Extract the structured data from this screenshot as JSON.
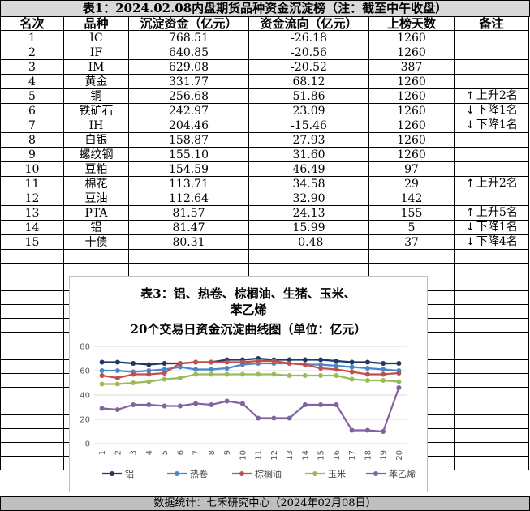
{
  "table": {
    "title": "表1：2024.02.08内盘期货品种资金沉淀榜（注：截至中午收盘）",
    "headers": [
      "名次",
      "品种",
      "沉淀资金（亿元）",
      "资金流向（亿元）",
      "上榜天数",
      "备注"
    ],
    "rows": [
      {
        "rank": "1",
        "name": "IC",
        "amount": "768.51",
        "flow": "-26.18",
        "days": "1260",
        "note_arrow": "",
        "note": ""
      },
      {
        "rank": "2",
        "name": "IF",
        "amount": "640.85",
        "flow": "-20.56",
        "days": "1260",
        "note_arrow": "",
        "note": ""
      },
      {
        "rank": "3",
        "name": "IM",
        "amount": "629.08",
        "flow": "-20.52",
        "days": "387",
        "note_arrow": "",
        "note": ""
      },
      {
        "rank": "4",
        "name": "黄金",
        "amount": "331.77",
        "flow": "68.12",
        "days": "1260",
        "note_arrow": "",
        "note": ""
      },
      {
        "rank": "5",
        "name": "铜",
        "amount": "256.68",
        "flow": "51.86",
        "days": "1260",
        "note_arrow": "↑",
        "note": "上升2名"
      },
      {
        "rank": "6",
        "name": "铁矿石",
        "amount": "242.97",
        "flow": "23.09",
        "days": "1260",
        "note_arrow": "↓",
        "note": "下降1名"
      },
      {
        "rank": "7",
        "name": "IH",
        "amount": "204.46",
        "flow": "-15.46",
        "days": "1260",
        "note_arrow": "↓",
        "note": "下降1名"
      },
      {
        "rank": "8",
        "name": "白银",
        "amount": "158.87",
        "flow": "27.93",
        "days": "1260",
        "note_arrow": "",
        "note": ""
      },
      {
        "rank": "9",
        "name": "螺纹钢",
        "amount": "155.10",
        "flow": "31.60",
        "days": "1260",
        "note_arrow": "",
        "note": ""
      },
      {
        "rank": "10",
        "name": "豆粕",
        "amount": "154.59",
        "flow": "46.49",
        "days": "97",
        "note_arrow": "",
        "note": ""
      },
      {
        "rank": "11",
        "name": "棉花",
        "amount": "113.71",
        "flow": "34.58",
        "days": "29",
        "note_arrow": "↑",
        "note": "上升2名"
      },
      {
        "rank": "12",
        "name": "豆油",
        "amount": "112.64",
        "flow": "32.90",
        "days": "142",
        "note_arrow": "",
        "note": ""
      },
      {
        "rank": "13",
        "name": "PTA",
        "amount": "81.57",
        "flow": "24.13",
        "days": "155",
        "note_arrow": "↑",
        "note": "上升5名"
      },
      {
        "rank": "14",
        "name": "铝",
        "amount": "81.47",
        "flow": "15.99",
        "days": "5",
        "note_arrow": "↓",
        "note": "下降1名"
      },
      {
        "rank": "15",
        "name": "十债",
        "amount": "80.31",
        "flow": "-0.48",
        "days": "37",
        "note_arrow": "↓",
        "note": "下降4名"
      }
    ]
  },
  "footer": "数据统计：七禾研究中心（2024年02月08日）",
  "chart_data": {
    "type": "line",
    "title": "表3：铝、热卷、棕榈油、生猪、玉米、苯乙烯",
    "subtitle": "20个交易日资金沉淀曲线图（单位：亿元）",
    "title_lines": [
      "表3：铝、热卷、棕榈油、生猪、玉米、",
      "苯乙烯",
      "20个交易日资金沉淀曲线图（单位：亿元）"
    ],
    "x": [
      "1",
      "2",
      "3",
      "4",
      "5",
      "6",
      "7",
      "8",
      "9",
      "10",
      "11",
      "12",
      "13",
      "14",
      "15",
      "16",
      "17",
      "18",
      "19",
      "20"
    ],
    "ylim": [
      0,
      80
    ],
    "yticks": [
      "0",
      "20",
      "40",
      "60",
      "80"
    ],
    "grid": true,
    "legend_position": "bottom",
    "series": [
      {
        "name": "铝",
        "color": "#1f3864",
        "values": [
          67,
          67,
          66,
          65,
          66,
          66,
          67,
          67,
          69,
          69,
          70,
          69,
          69,
          69,
          69,
          68,
          67,
          67,
          66,
          66
        ]
      },
      {
        "name": "热卷",
        "color": "#4a86c8",
        "values": [
          60,
          60,
          59,
          60,
          61,
          63,
          61,
          61,
          62,
          65,
          66,
          66,
          66,
          65,
          65,
          64,
          63,
          62,
          61,
          60
        ]
      },
      {
        "name": "棕榈油",
        "color": "#c0504d",
        "values": [
          56,
          54,
          57,
          57,
          58,
          66,
          67,
          67,
          67,
          67,
          68,
          68,
          66,
          65,
          62,
          61,
          59,
          57,
          57,
          58
        ]
      },
      {
        "name": "玉米",
        "color": "#9bbb59",
        "values": [
          49,
          49,
          50,
          51,
          53,
          54,
          57,
          57,
          57,
          57,
          57,
          57,
          56,
          56,
          56,
          56,
          53,
          52,
          52,
          51
        ]
      },
      {
        "name": "苯乙烯",
        "color": "#8064a2",
        "values": [
          29,
          28,
          32,
          32,
          31,
          31,
          33,
          32,
          35,
          33,
          21,
          21,
          21,
          32,
          32,
          32,
          11,
          11,
          10,
          46
        ]
      }
    ]
  }
}
